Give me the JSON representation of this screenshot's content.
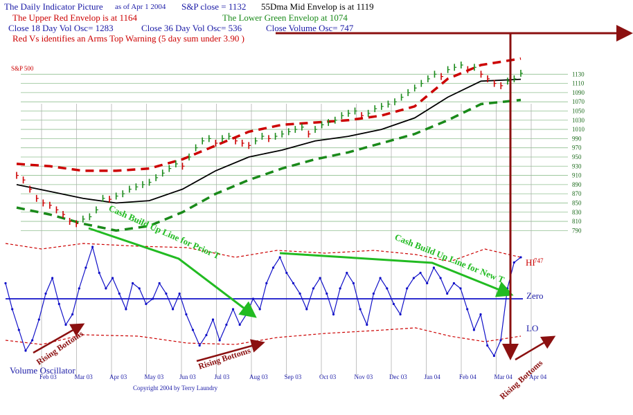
{
  "header": {
    "title": "The Daily Indicator Picture",
    "asof": "as of Apr 1  2004",
    "sp_close": "S&P close = 1132",
    "mid_envelope": "55Dma  Mid Envelop is at 1119",
    "upper_envelope": "The  Upper Red Envelop is at  1164",
    "lower_envelope": "The Lower Green Envelop at 1074",
    "osc18": "Close 18 Day Vol Osc=  1283",
    "osc36": "Close 36 Day Vol Osc=  536",
    "close_vol": "Close Volume Osc=  747",
    "arms_warning": "Red Vs identifies an  Arms Top Warning (5 day sum under 3.90 )"
  },
  "colors": {
    "navy": "#1a1aa6",
    "red": "#cc0000",
    "darkred": "#8b1010",
    "green": "#1a8a1a",
    "brightgreen": "#22bb22",
    "grid": "#8fbf8f",
    "blue": "#1010c8",
    "black": "#000000"
  },
  "chart_data": {
    "type": "line",
    "title": "S&P 500",
    "price_axis": {
      "ticks": [
        "1130",
        "1110",
        "1090",
        "1070",
        "1050",
        "1030",
        "1010",
        "990",
        "970",
        "950",
        "930",
        "910",
        "890",
        "870",
        "850",
        "830",
        "810",
        "790"
      ],
      "ylim": [
        780,
        1150
      ]
    },
    "x_ticks": [
      "Feb 03",
      "Mar 03",
      "Apr 03",
      "May 03",
      "Jun 03",
      "Jul 03",
      "Aug 03",
      "Sep 03",
      "Oct 03",
      "Nov 03",
      "Dec 03",
      "Jan 04",
      "Feb 04",
      "Mar 04",
      "Apr 04"
    ],
    "price_series": [
      {
        "name": "S&P 500",
        "x": [
          0,
          4,
          8,
          12,
          16,
          20,
          24,
          28,
          32,
          36,
          40,
          44,
          48,
          52,
          56,
          60,
          64,
          68,
          72,
          76,
          80,
          84,
          88,
          92,
          96,
          100,
          104,
          108,
          112,
          116,
          120,
          124,
          128,
          132,
          136,
          140,
          144,
          148,
          152,
          156,
          160,
          164,
          168,
          172,
          176,
          180,
          184,
          188,
          192,
          196,
          200,
          204,
          208,
          212,
          216,
          220,
          224,
          228,
          232,
          236,
          240,
          244,
          248,
          252,
          256,
          260,
          264,
          268,
          272,
          276,
          280,
          284,
          288,
          292,
          296,
          300,
          304
        ],
        "values": [
          910,
          900,
          880,
          860,
          850,
          845,
          835,
          825,
          810,
          805,
          815,
          820,
          835,
          860,
          858,
          865,
          870,
          880,
          885,
          890,
          895,
          905,
          915,
          925,
          935,
          930,
          950,
          970,
          985,
          990,
          980,
          990,
          995,
          985,
          980,
          975,
          985,
          995,
          990,
          995,
          1000,
          1005,
          1010,
          1015,
          1000,
          1010,
          1020,
          1025,
          1030,
          1040,
          1045,
          1050,
          1040,
          1045,
          1055,
          1060,
          1065,
          1070,
          1080,
          1090,
          1100,
          1110,
          1120,
          1130,
          1125,
          1140,
          1145,
          1150,
          1140,
          1145,
          1130,
          1120,
          1110,
          1105,
          1115,
          1120,
          1132
        ]
      },
      {
        "name": "55Dma",
        "x": [
          0,
          20,
          40,
          60,
          80,
          100,
          120,
          140,
          160,
          180,
          200,
          220,
          240,
          260,
          280,
          304
        ],
        "values": [
          890,
          875,
          860,
          850,
          855,
          880,
          920,
          950,
          965,
          985,
          995,
          1010,
          1035,
          1080,
          1115,
          1119
        ]
      },
      {
        "name": "Upper Red Envelop",
        "x": [
          0,
          20,
          40,
          60,
          80,
          100,
          120,
          140,
          160,
          180,
          200,
          220,
          240,
          260,
          280,
          304
        ],
        "values": [
          935,
          930,
          920,
          920,
          925,
          945,
          975,
          1005,
          1020,
          1025,
          1030,
          1040,
          1060,
          1120,
          1150,
          1164
        ]
      },
      {
        "name": "Lower Green Envelop",
        "x": [
          0,
          20,
          40,
          60,
          80,
          100,
          120,
          140,
          160,
          180,
          200,
          220,
          240,
          260,
          280,
          304
        ],
        "values": [
          840,
          825,
          805,
          790,
          800,
          830,
          870,
          900,
          925,
          945,
          960,
          980,
          1000,
          1030,
          1065,
          1074
        ]
      }
    ],
    "oscillator": {
      "labels": {
        "hi": "HI",
        "hi_value": "747",
        "zero": "Zero",
        "lo": "LO",
        "name": "Volume Oscillator"
      },
      "values": [
        0.3,
        -0.2,
        -0.6,
        -1.0,
        -0.8,
        -0.4,
        0.1,
        0.4,
        -0.1,
        -0.5,
        -0.3,
        0.2,
        0.6,
        1.0,
        0.5,
        0.2,
        0.4,
        0.1,
        -0.2,
        0.3,
        0.2,
        -0.1,
        0.0,
        0.3,
        0.1,
        -0.2,
        0.1,
        -0.3,
        -0.6,
        -0.9,
        -0.7,
        -0.4,
        -0.8,
        -0.5,
        -0.2,
        -0.5,
        -0.3,
        0.0,
        -0.2,
        0.3,
        0.6,
        0.8,
        0.5,
        0.3,
        0.1,
        -0.2,
        0.2,
        0.4,
        0.1,
        -0.3,
        0.2,
        0.5,
        0.3,
        -0.2,
        -0.5,
        0.1,
        0.4,
        0.2,
        -0.1,
        -0.3,
        0.2,
        0.4,
        0.5,
        0.3,
        0.6,
        0.4,
        0.1,
        0.3,
        0.2,
        -0.2,
        -0.6,
        -0.3,
        -0.9,
        -1.1,
        -0.8,
        0.2,
        0.7,
        0.8
      ]
    },
    "annotations": [
      "Cash Build Up Line for Prior T",
      "Cash Build Up Line for New T",
      "Rising Bottoms",
      "Rising Bottoms",
      "Rising Bottoms"
    ],
    "copyright": "Copyright 2004 by Terry Laundry",
    "sp_label": "S&P 500"
  }
}
